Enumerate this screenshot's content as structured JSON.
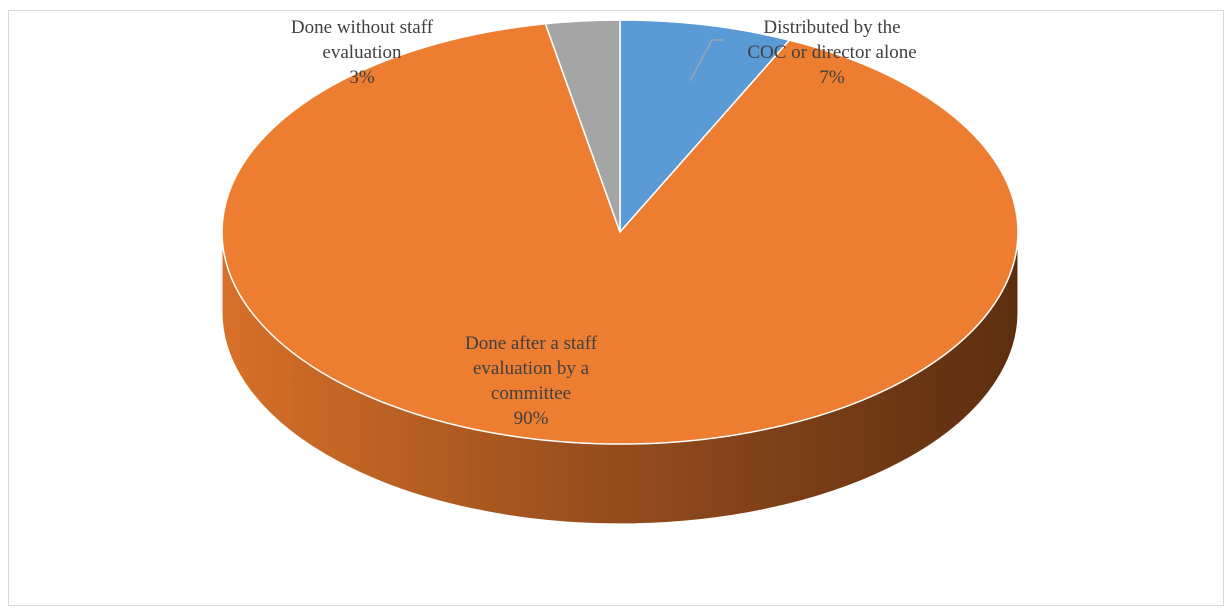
{
  "chart_data": {
    "type": "pie",
    "style": "3d",
    "title": "",
    "slices": [
      {
        "name": "Distributed by the COC or director alone",
        "label_lines": [
          "Distributed by the",
          "COC or director alone"
        ],
        "percent_label": "7%",
        "value": 7,
        "color": "#5b9bd5",
        "side_color": "#2e5f8e",
        "has_leader_line": true
      },
      {
        "name": "Done after a staff evaluation by a committee",
        "label_lines": [
          "Done after a staff",
          "evaluation by a",
          "committee"
        ],
        "percent_label": "90%",
        "value": 90,
        "color": "#ed7d31",
        "side_color": "#a04d16",
        "has_leader_line": false
      },
      {
        "name": "Done without staff evaluation",
        "label_lines": [
          "Done without staff",
          "evaluation"
        ],
        "percent_label": "3%",
        "value": 3,
        "color": "#a5a5a5",
        "side_color": "#6e6e6e",
        "has_leader_line": true
      }
    ],
    "legend": "none",
    "data_labels": "category name and percentage"
  }
}
